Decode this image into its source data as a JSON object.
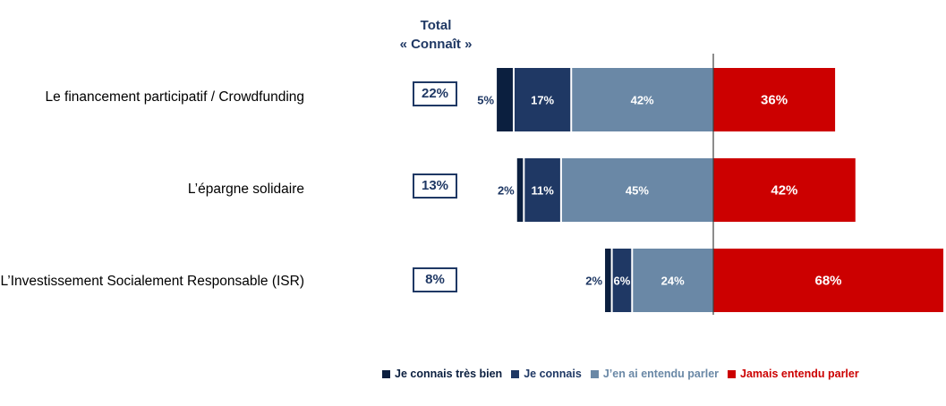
{
  "total_header": {
    "line1": "Total",
    "line2": "« Connaît »"
  },
  "chart_data": {
    "type": "bar",
    "orientation": "horizontal-diverging",
    "categories": [
      "Le financement participatif / Crowdfunding",
      "L’épargne solidaire",
      "L’Investissement Socialement Responsable (ISR)"
    ],
    "series": [
      {
        "name": "Je connais très bien",
        "values": [
          5,
          2,
          2
        ],
        "labels": [
          "5%",
          "2%",
          "2%"
        ],
        "color": "#0b1f3f",
        "side": "left"
      },
      {
        "name": "Je connais",
        "values": [
          17,
          11,
          6
        ],
        "labels": [
          "17%",
          "11%",
          "6%"
        ],
        "color": "#1f3864",
        "side": "left"
      },
      {
        "name": "J’en ai entendu parler",
        "values": [
          42,
          45,
          24
        ],
        "labels": [
          "42%",
          "45%",
          "24%"
        ],
        "color": "#6a88a6",
        "side": "left"
      },
      {
        "name": "Jamais entendu parler",
        "values": [
          36,
          42,
          68
        ],
        "labels": [
          "36%",
          "42%",
          "68%"
        ],
        "color": "#cc0000",
        "side": "right"
      }
    ],
    "totals": [
      "22%",
      "13%",
      "8%"
    ],
    "legend_position": "bottom",
    "grid": false
  }
}
